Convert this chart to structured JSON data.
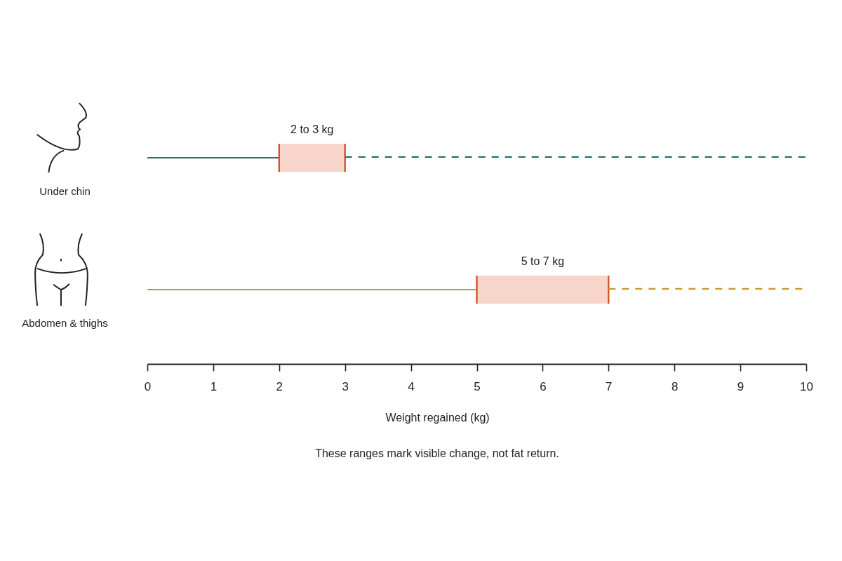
{
  "chart_data": {
    "type": "bar",
    "orientation": "horizontal",
    "stacked": true,
    "categories": [
      "Under chin",
      "Abdomen & thighs"
    ],
    "series": [
      {
        "line_style": "solid",
        "colors": [
          "#23766f",
          "#c9962f"
        ],
        "values": [
          2,
          5
        ]
      },
      {
        "color": "#f8d5ca",
        "values": [
          1,
          2
        ]
      },
      {
        "line_style": "dashed",
        "colors": [
          "#23766f",
          "#c9962f"
        ],
        "values": [
          7,
          3
        ]
      }
    ],
    "xlabel": "Weight regained (kg)",
    "xlim": [
      0,
      10
    ],
    "xticks": [
      0,
      1,
      2,
      3,
      4,
      5,
      6,
      7,
      8,
      9,
      10
    ],
    "annotations": [
      "2 to 3 kg",
      "5 to 7 kg",
      "These ranges mark visible change, not fat return."
    ]
  }
}
